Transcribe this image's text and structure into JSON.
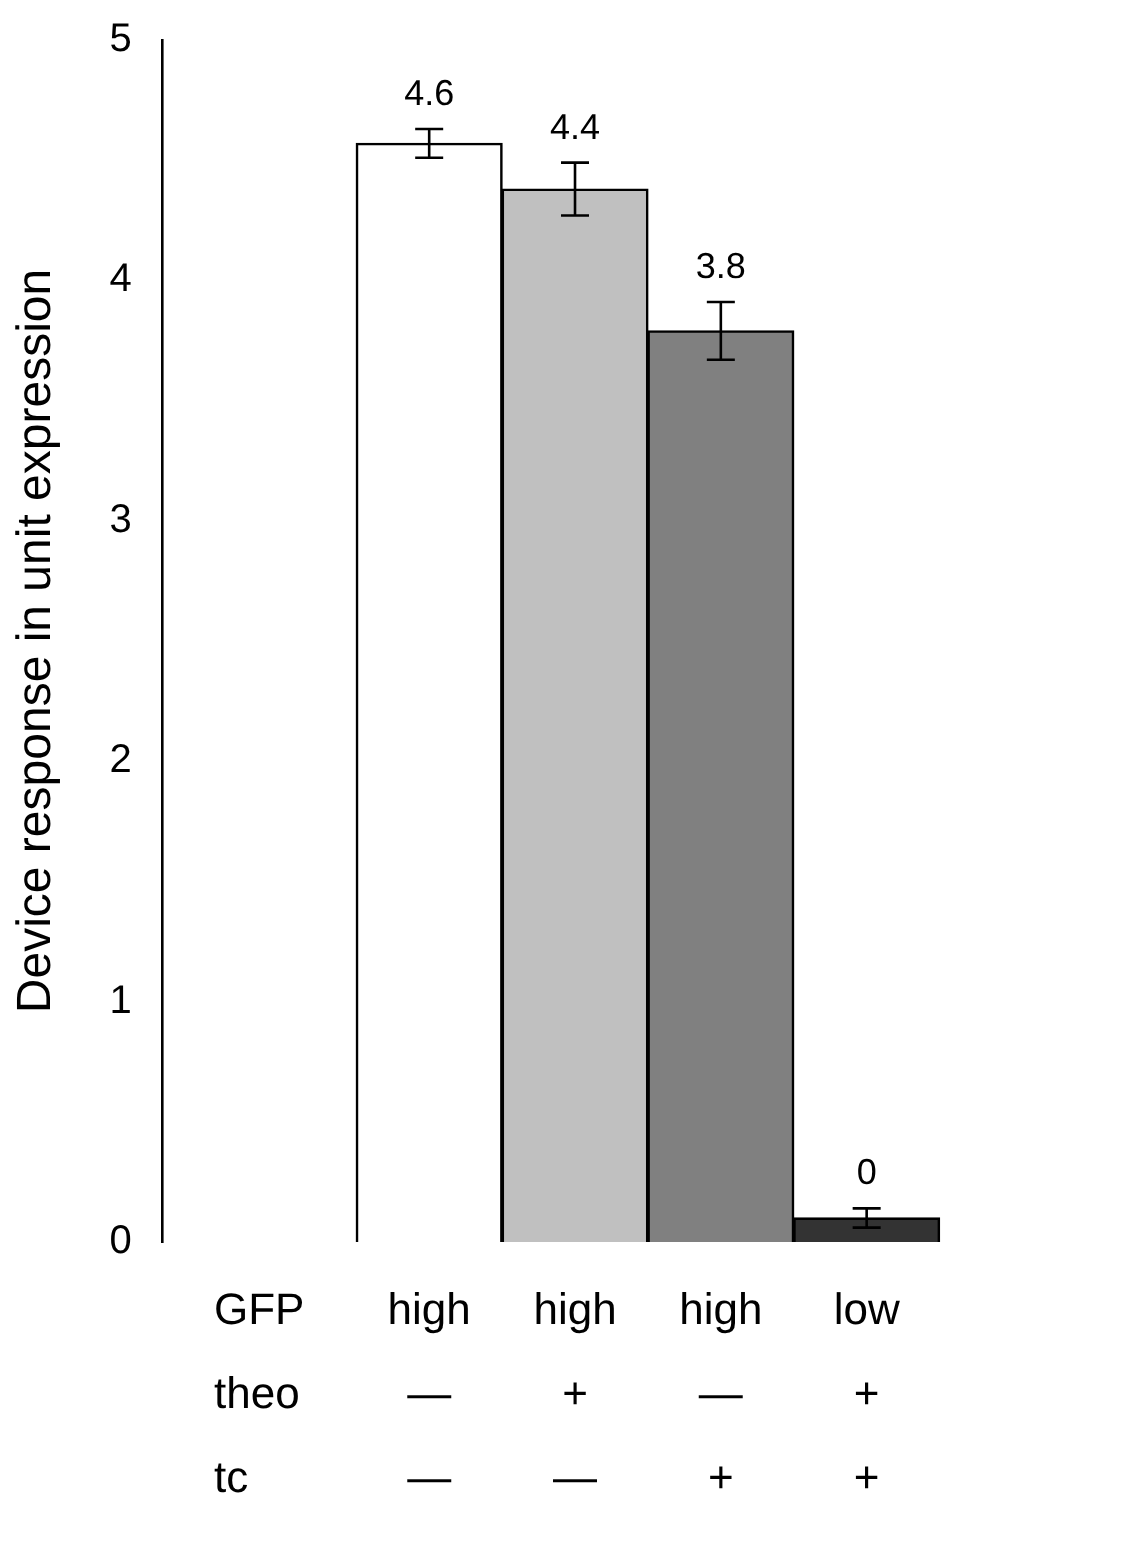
{
  "chart_data": {
    "type": "bar",
    "ylabel": "Device response in unit expression",
    "categories": [
      "high\n—\n—",
      "high\n+\n—",
      "high\n—\n+",
      "low\n+\n+"
    ],
    "values": [
      4.57,
      4.38,
      3.79,
      0.1
    ],
    "colors": [
      "#ffffff",
      "#c0c0c0",
      "#808080",
      "#333333"
    ],
    "errors": [
      0.06,
      0.11,
      0.12,
      0.04
    ],
    "value_labels": [
      "4.6",
      "4.4",
      "3.8",
      "0"
    ],
    "annotations": [
      "GFP",
      "theo",
      "tc"
    ],
    "ylim": [
      0,
      5
    ],
    "yticks": [
      0,
      1,
      2,
      3,
      4,
      5
    ],
    "grid": false,
    "legend": false
  }
}
